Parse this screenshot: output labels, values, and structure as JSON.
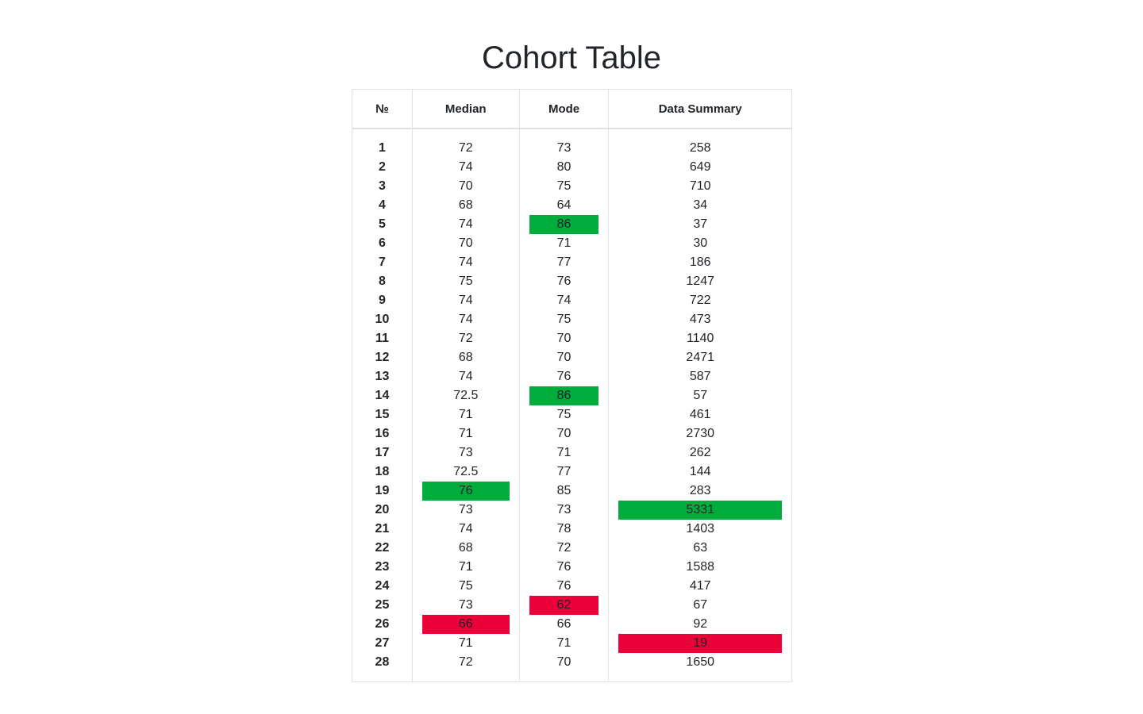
{
  "title": "Cohort Table",
  "colors": {
    "high": "#00ad3c",
    "low": "#eb0037",
    "border": "#dee2e6",
    "text": "#212529"
  },
  "chart_data": {
    "type": "table",
    "title": "Cohort Table",
    "columns": [
      "№",
      "Median",
      "Mode",
      "Data Summary"
    ],
    "rows": [
      {
        "num": "1",
        "median": "72",
        "mode": "73",
        "summary": "258"
      },
      {
        "num": "2",
        "median": "74",
        "mode": "80",
        "summary": "649"
      },
      {
        "num": "3",
        "median": "70",
        "mode": "75",
        "summary": "710"
      },
      {
        "num": "4",
        "median": "68",
        "mode": "64",
        "summary": "34"
      },
      {
        "num": "5",
        "median": "74",
        "mode": "86",
        "summary": "37",
        "mode_hl": "high"
      },
      {
        "num": "6",
        "median": "70",
        "mode": "71",
        "summary": "30"
      },
      {
        "num": "7",
        "median": "74",
        "mode": "77",
        "summary": "186"
      },
      {
        "num": "8",
        "median": "75",
        "mode": "76",
        "summary": "1247"
      },
      {
        "num": "9",
        "median": "74",
        "mode": "74",
        "summary": "722"
      },
      {
        "num": "10",
        "median": "74",
        "mode": "75",
        "summary": "473"
      },
      {
        "num": "11",
        "median": "72",
        "mode": "70",
        "summary": "1140"
      },
      {
        "num": "12",
        "median": "68",
        "mode": "70",
        "summary": "2471"
      },
      {
        "num": "13",
        "median": "74",
        "mode": "76",
        "summary": "587"
      },
      {
        "num": "14",
        "median": "72.5",
        "mode": "86",
        "summary": "57",
        "mode_hl": "high"
      },
      {
        "num": "15",
        "median": "71",
        "mode": "75",
        "summary": "461"
      },
      {
        "num": "16",
        "median": "71",
        "mode": "70",
        "summary": "2730"
      },
      {
        "num": "17",
        "median": "73",
        "mode": "71",
        "summary": "262"
      },
      {
        "num": "18",
        "median": "72.5",
        "mode": "77",
        "summary": "144"
      },
      {
        "num": "19",
        "median": "76",
        "mode": "85",
        "summary": "283",
        "median_hl": "high"
      },
      {
        "num": "20",
        "median": "73",
        "mode": "73",
        "summary": "5331",
        "summary_hl": "high"
      },
      {
        "num": "21",
        "median": "74",
        "mode": "78",
        "summary": "1403"
      },
      {
        "num": "22",
        "median": "68",
        "mode": "72",
        "summary": "63"
      },
      {
        "num": "23",
        "median": "71",
        "mode": "76",
        "summary": "1588"
      },
      {
        "num": "24",
        "median": "75",
        "mode": "76",
        "summary": "417"
      },
      {
        "num": "25",
        "median": "73",
        "mode": "62",
        "summary": "67",
        "mode_hl": "low"
      },
      {
        "num": "26",
        "median": "66",
        "mode": "66",
        "summary": "92",
        "median_hl": "low"
      },
      {
        "num": "27",
        "median": "71",
        "mode": "71",
        "summary": "19",
        "summary_hl": "low"
      },
      {
        "num": "28",
        "median": "72",
        "mode": "70",
        "summary": "1650"
      }
    ]
  }
}
